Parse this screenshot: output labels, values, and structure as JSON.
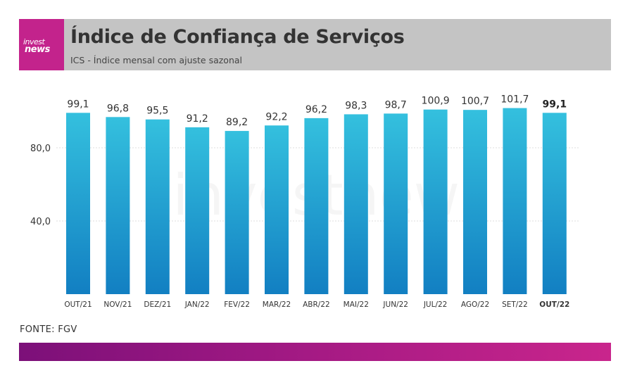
{
  "header": {
    "logo_line1": "invest",
    "logo_line2": "news",
    "title": "Índice de Confiança de Serviços",
    "subtitle": "ICS - Índice mensal com ajuste sazonal"
  },
  "source": "FONTE: FGV",
  "watermark": "investnews",
  "colors": {
    "header_bg": "#c4c4c4",
    "logo_bg": "#c3238c",
    "bar_top": "#34c0de",
    "bar_bottom": "#127fc2",
    "footer_start": "#7c1079",
    "footer_end": "#c9258c"
  },
  "chart_data": {
    "type": "bar",
    "categories": [
      "OUT/21",
      "NOV/21",
      "DEZ/21",
      "JAN/22",
      "FEV/22",
      "MAR/22",
      "ABR/22",
      "MAI/22",
      "JUN/22",
      "JUL/22",
      "AGO/22",
      "SET/22",
      "OUT/22"
    ],
    "values": [
      99.1,
      96.8,
      95.5,
      91.2,
      89.2,
      92.2,
      96.2,
      98.3,
      98.7,
      100.9,
      100.7,
      101.7,
      99.1
    ],
    "value_labels": [
      "99,1",
      "96,8",
      "95,5",
      "91,2",
      "89,2",
      "92,2",
      "96,2",
      "98,3",
      "98,7",
      "100,9",
      "100,7",
      "101,7",
      "99,1"
    ],
    "highlight_index": 12,
    "yticks": [
      40,
      80
    ],
    "ytick_labels": [
      "40,0",
      "80,0"
    ],
    "ylim": [
      0,
      120
    ],
    "grid": true
  }
}
